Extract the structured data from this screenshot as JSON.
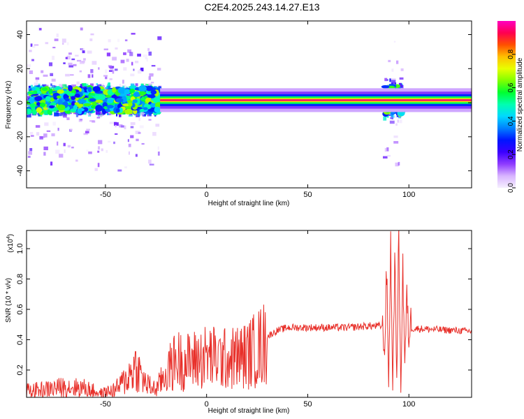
{
  "figure": {
    "title": "C2E4.2025.243.14.27.E13"
  },
  "chart_data": [
    {
      "type": "heatmap",
      "xlabel": "Height of straight line (km)",
      "ylabel": "Frequency (Hz)",
      "xlim": [
        -89,
        131
      ],
      "ylim": [
        -50,
        48
      ],
      "xticks": [
        -50,
        0,
        50,
        100
      ],
      "yticks": [
        -40,
        -20,
        0,
        20,
        40
      ],
      "colorbar": {
        "label": "Normalized spectral amplitude",
        "ticks": [
          0.0,
          0.2,
          0.4,
          0.6,
          0.8
        ],
        "range": [
          0,
          1
        ],
        "colormap": [
          "#f6f0ff",
          "#d8b4ff",
          "#8f3cff",
          "#3b00ff",
          "#0015ff",
          "#0080ff",
          "#00d8ff",
          "#00ffb0",
          "#00ff30",
          "#80ff00",
          "#e8ff00",
          "#ffc000",
          "#ff5000",
          "#ff0050",
          "#ff00c0"
        ]
      },
      "spectral_line_center_hz": 1.5,
      "bursts": [
        {
          "x": -88,
          "x2": -23,
          "halfwidth_hz": 10,
          "level": 0.5
        },
        {
          "x": 88,
          "x2": 97,
          "halfwidth_hz": 12,
          "level": 0.35
        }
      ],
      "steady_band": {
        "x": -23,
        "x2": 131,
        "level": 0.7
      }
    },
    {
      "type": "line",
      "xlabel": "Height of straight line (km)",
      "ylabel": "SNR (10 * v/v)",
      "yscale_label": "(x10",
      "yscale_exp": "4",
      "yscale_close": ")",
      "xlim": [
        -89,
        131
      ],
      "ylim": [
        0.02,
        1.12
      ],
      "xticks": [
        -50,
        0,
        50,
        100
      ],
      "yticks": [
        0.2,
        0.4,
        0.6,
        0.8,
        1.0
      ],
      "color": "#e8302a",
      "envelope": {
        "x": [
          -89,
          -80,
          -70,
          -60,
          -52,
          -45,
          -40,
          -35,
          -30,
          -25,
          -20,
          -15,
          -10,
          -5,
          0,
          10,
          20,
          25,
          30,
          35,
          40,
          50,
          60,
          70,
          80,
          87
        ],
        "y": [
          0.07,
          0.08,
          0.1,
          0.09,
          0.05,
          0.08,
          0.15,
          0.25,
          0.12,
          0.08,
          0.2,
          0.3,
          0.28,
          0.3,
          0.32,
          0.3,
          0.33,
          0.38,
          0.43,
          0.47,
          0.49,
          0.49,
          0.49,
          0.49,
          0.5,
          0.5
        ]
      },
      "spike_region": {
        "x": [
          87,
          88,
          89,
          90,
          91,
          92,
          93,
          94,
          95,
          96,
          97,
          98,
          99,
          100,
          101
        ],
        "y": [
          0.5,
          0.3,
          0.9,
          0.1,
          1.05,
          0.08,
          0.95,
          0.15,
          1.1,
          0.06,
          0.9,
          0.25,
          0.7,
          0.4,
          0.55
        ]
      },
      "tail": {
        "x": [
          101,
          131
        ],
        "y": [
          0.48,
          0.46
        ]
      }
    }
  ]
}
